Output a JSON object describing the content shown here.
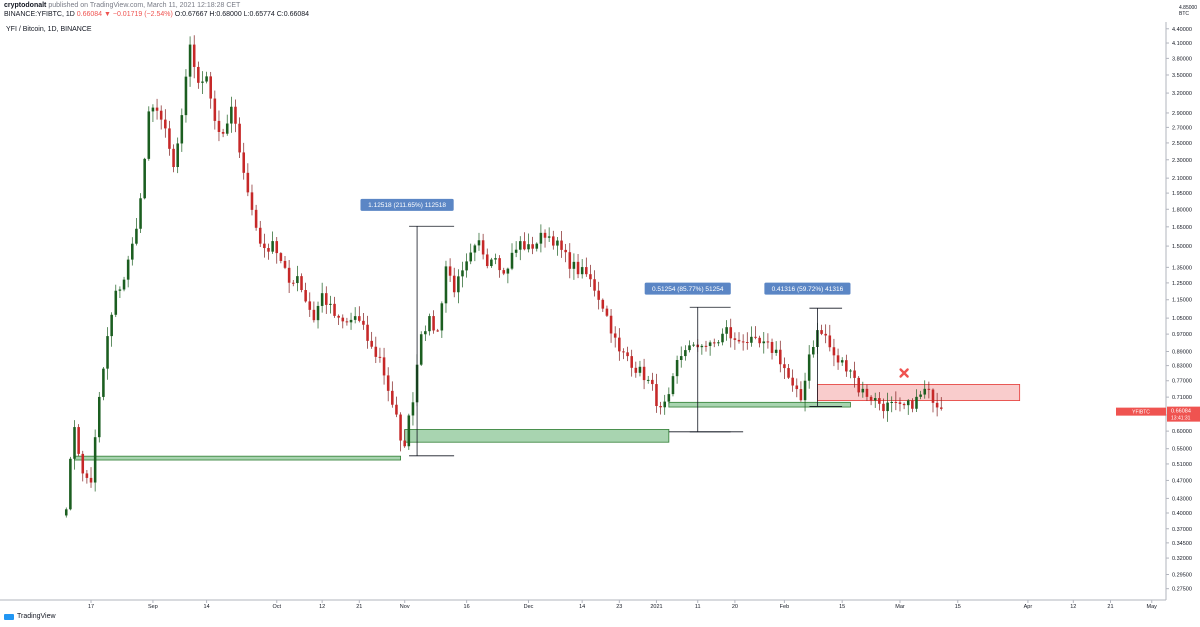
{
  "header": {
    "author": "cryptodonalt",
    "published": "published on TradingView.com, March 11, 2021 12:18:28 CET",
    "symbol_line": "BINANCE:YFIBTC, 1D",
    "change": "0.66084 ▼ −0.01719 (−2.54%)",
    "ohlc": "O:0.67667 H:0.68000 L:0.65774 C:0.66084"
  },
  "symbol_title": "YFI / Bitcoin, 1D, BINANCE",
  "footer": {
    "brand": "TradingView",
    "logo_icon": "tradingview-logo-icon"
  },
  "colors": {
    "up": "#26a69a",
    "up_body": "#1b5e20",
    "down": "#ef5350",
    "down_body": "#c62828",
    "green_zone_fill": "#9fcfa7",
    "green_zone_stroke": "#2e7d32",
    "red_zone_fill": "#f8c3c3",
    "red_zone_stroke": "#e53935",
    "label_bg": "#5b86c5",
    "price_tag": "#ef5350",
    "cross": "#ef5350"
  },
  "chart_data": {
    "type": "candlestick",
    "y_scale": "log",
    "y_unit": "BTC",
    "ylim": [
      0.26,
      4.55
    ],
    "y_ticks": [
      "4.40000",
      "4.10000",
      "3.80000",
      "3.50000",
      "3.20000",
      "2.90000",
      "2.70000",
      "2.50000",
      "2.30000",
      "2.10000",
      "1.95000",
      "1.80000",
      "1.65000",
      "1.50000",
      "1.35000",
      "1.25000",
      "1.15000",
      "1.05000",
      "0.97000",
      "0.89000",
      "0.83000",
      "0.77000",
      "0.71000",
      "0.65000",
      "0.60000",
      "0.55000",
      "0.51000",
      "0.47000",
      "0.43000",
      "0.40000",
      "0.37000",
      "0.34500",
      "0.32000",
      "0.29500",
      "0.27500"
    ],
    "y_top_label": "4.85000 BTC",
    "x_labels": [
      {
        "label": "17",
        "day": -12
      },
      {
        "label": "Sep",
        "day": 3
      },
      {
        "label": "14",
        "day": 16
      },
      {
        "label": "Oct",
        "day": 33
      },
      {
        "label": "12",
        "day": 44
      },
      {
        "label": "21",
        "day": 53
      },
      {
        "label": "Nov",
        "day": 64
      },
      {
        "label": "16",
        "day": 79
      },
      {
        "label": "Dec",
        "day": 94
      },
      {
        "label": "14",
        "day": 107
      },
      {
        "label": "23",
        "day": 116
      },
      {
        "label": "2021",
        "day": 125
      },
      {
        "label": "11",
        "day": 135
      },
      {
        "label": "20",
        "day": 144
      },
      {
        "label": "Feb",
        "day": 156
      },
      {
        "label": "15",
        "day": 170
      },
      {
        "label": "Mar",
        "day": 184
      },
      {
        "label": "15",
        "day": 198
      },
      {
        "label": "Apr",
        "day": 215
      },
      {
        "label": "12",
        "day": 226
      },
      {
        "label": "21",
        "day": 235
      },
      {
        "label": "May",
        "day": 245
      }
    ],
    "x_range": [
      -20,
      247
    ],
    "keypoints": [
      [
        -18,
        0.42
      ],
      [
        -16,
        0.62
      ],
      [
        -14,
        0.48
      ],
      [
        -12,
        0.47
      ],
      [
        -10,
        0.7
      ],
      [
        -8,
        0.95
      ],
      [
        -6,
        1.18
      ],
      [
        -4,
        1.28
      ],
      [
        -2,
        1.5
      ],
      [
        0,
        1.88
      ],
      [
        2,
        2.85
      ],
      [
        4,
        3.0
      ],
      [
        6,
        2.62
      ],
      [
        8,
        2.2
      ],
      [
        10,
        2.8
      ],
      [
        12,
        4.1
      ],
      [
        14,
        3.3
      ],
      [
        16,
        3.55
      ],
      [
        18,
        2.8
      ],
      [
        20,
        2.55
      ],
      [
        22,
        2.95
      ],
      [
        24,
        2.45
      ],
      [
        26,
        1.95
      ],
      [
        28,
        1.65
      ],
      [
        30,
        1.45
      ],
      [
        32,
        1.55
      ],
      [
        34,
        1.38
      ],
      [
        36,
        1.25
      ],
      [
        38,
        1.3
      ],
      [
        40,
        1.15
      ],
      [
        42,
        1.05
      ],
      [
        44,
        1.18
      ],
      [
        46,
        1.1
      ],
      [
        48,
        1.03
      ],
      [
        50,
        1.02
      ],
      [
        52,
        1.06
      ],
      [
        54,
        0.99
      ],
      [
        56,
        0.9
      ],
      [
        58,
        0.86
      ],
      [
        60,
        0.74
      ],
      [
        62,
        0.64
      ],
      [
        63,
        0.56
      ],
      [
        64,
        0.57
      ],
      [
        66,
        0.71
      ],
      [
        68,
        0.99
      ],
      [
        70,
        1.03
      ],
      [
        72,
        0.98
      ],
      [
        74,
        1.36
      ],
      [
        76,
        1.22
      ],
      [
        78,
        1.3
      ],
      [
        80,
        1.42
      ],
      [
        82,
        1.52
      ],
      [
        84,
        1.4
      ],
      [
        86,
        1.45
      ],
      [
        88,
        1.3
      ],
      [
        90,
        1.43
      ],
      [
        92,
        1.52
      ],
      [
        94,
        1.48
      ],
      [
        96,
        1.53
      ],
      [
        98,
        1.6
      ],
      [
        100,
        1.55
      ],
      [
        102,
        1.46
      ],
      [
        104,
        1.38
      ],
      [
        106,
        1.33
      ],
      [
        108,
        1.3
      ],
      [
        110,
        1.22
      ],
      [
        112,
        1.12
      ],
      [
        114,
        1.0
      ],
      [
        116,
        0.88
      ],
      [
        118,
        0.87
      ],
      [
        120,
        0.82
      ],
      [
        122,
        0.79
      ],
      [
        124,
        0.74
      ],
      [
        126,
        0.66
      ],
      [
        128,
        0.7
      ],
      [
        130,
        0.84
      ],
      [
        132,
        0.91
      ],
      [
        134,
        0.9
      ],
      [
        136,
        0.93
      ],
      [
        138,
        0.91
      ],
      [
        140,
        0.94
      ],
      [
        142,
        0.99
      ],
      [
        144,
        0.93
      ],
      [
        146,
        0.95
      ],
      [
        148,
        0.93
      ],
      [
        150,
        0.92
      ],
      [
        152,
        0.91
      ],
      [
        154,
        0.89
      ],
      [
        156,
        0.82
      ],
      [
        158,
        0.74
      ],
      [
        160,
        0.7
      ],
      [
        162,
        0.88
      ],
      [
        164,
        0.98
      ],
      [
        166,
        0.96
      ],
      [
        168,
        0.86
      ],
      [
        170,
        0.84
      ],
      [
        172,
        0.82
      ],
      [
        174,
        0.74
      ],
      [
        176,
        0.72
      ],
      [
        178,
        0.7
      ],
      [
        180,
        0.68
      ],
      [
        182,
        0.68
      ],
      [
        184,
        0.67
      ],
      [
        186,
        0.68
      ],
      [
        188,
        0.7
      ],
      [
        190,
        0.73
      ],
      [
        192,
        0.71
      ],
      [
        194,
        0.67
      ]
    ],
    "zones": [
      {
        "type": "support",
        "x": [
          -16,
          63
        ],
        "y": [
          0.52,
          0.53
        ]
      },
      {
        "type": "support",
        "x": [
          64,
          128
        ],
        "y": [
          0.568,
          0.605
        ]
      },
      {
        "type": "support",
        "x": [
          128,
          172
        ],
        "y": [
          0.676,
          0.692
        ]
      },
      {
        "type": "resistance",
        "x": [
          164,
          213
        ],
        "y": [
          0.698,
          0.756
        ]
      }
    ],
    "measurements": [
      {
        "label": "1.12518 (211.65%) 112518",
        "x": 67,
        "x_end": 75,
        "y_low": 0.531,
        "y_high": 1.655,
        "label_y": 1.84
      },
      {
        "label": "0.51254 (85.77%) 51254",
        "x": 135,
        "x_end": 142,
        "y_low": 0.598,
        "y_high": 1.108,
        "label_y": 1.215
      },
      {
        "label": "0.41316 (59.72%) 41316",
        "x": 164,
        "x_end": 169,
        "y_low": 0.678,
        "y_high": 1.103,
        "label_y": 1.215
      }
    ],
    "extra_lines": [
      {
        "x1": 128,
        "x2": 146,
        "y": 0.598
      }
    ],
    "cross_marker": {
      "x": 185,
      "y": 0.8
    },
    "current_price": {
      "value": "0.66084",
      "symbol": "YFIBTC",
      "time": "13:41:31",
      "y": 0.6608
    }
  }
}
